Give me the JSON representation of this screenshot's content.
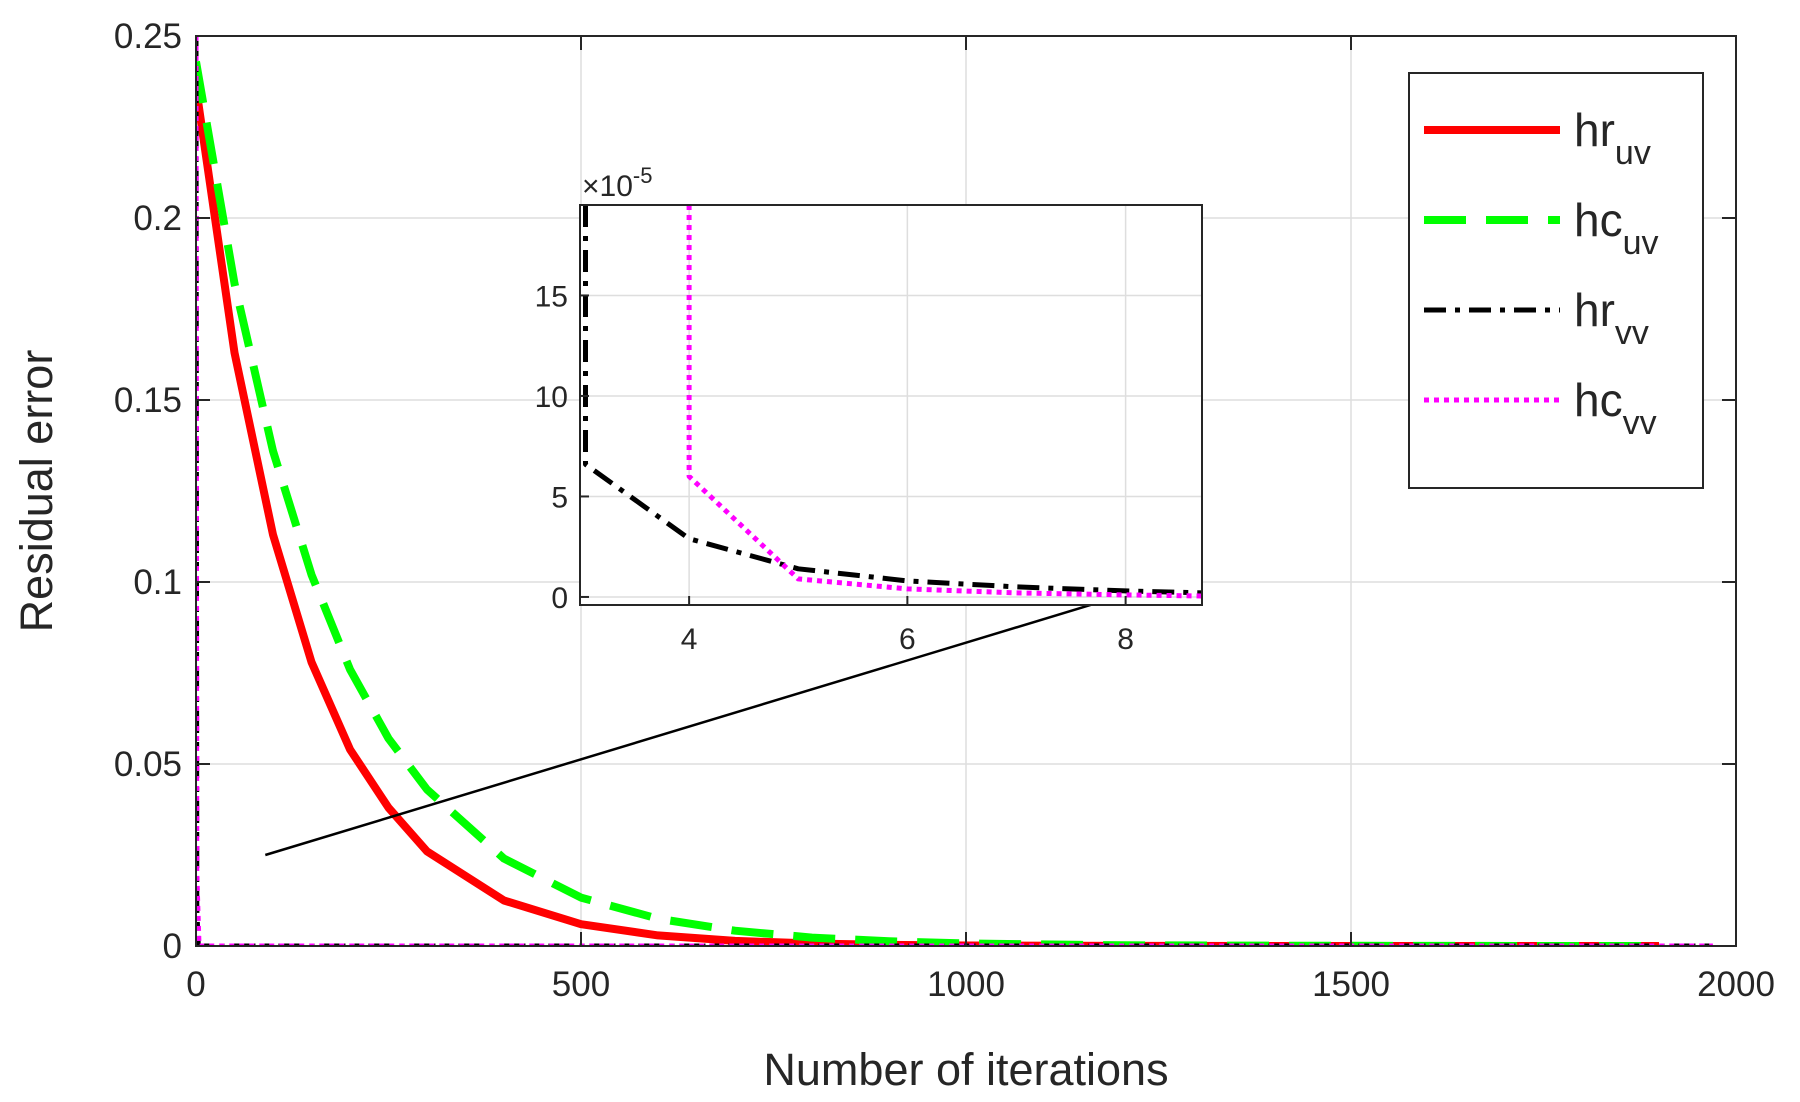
{
  "chart_data": {
    "type": "line",
    "title": "",
    "xlabel": "Number of iterations",
    "ylabel": "Residual error",
    "xlim": [
      0,
      2000
    ],
    "ylim": [
      0,
      0.25
    ],
    "x_ticks": [
      "0",
      "500",
      "1000",
      "1500",
      "2000"
    ],
    "y_ticks": [
      "0",
      "0.05",
      "0.1",
      "0.15",
      "0.2",
      "0.25"
    ],
    "grid": true,
    "legend_position": "top-right",
    "series": [
      {
        "name": "hr",
        "subscript": "uv",
        "color": "#ff0000",
        "style": "solid",
        "x": [
          0,
          50,
          100,
          150,
          200,
          250,
          300,
          400,
          500,
          600,
          700,
          800,
          900,
          1000,
          1200,
          1400,
          1600,
          1800,
          1900
        ],
        "y": [
          0.236,
          0.163,
          0.113,
          0.078,
          0.054,
          0.038,
          0.026,
          0.0125,
          0.006,
          0.0029,
          0.0014,
          0.0007,
          0.0003,
          0.00015,
          4e-05,
          1e-05,
          3e-06,
          1e-06,
          0
        ]
      },
      {
        "name": "hc",
        "subscript": "uv",
        "color": "#00ff00",
        "style": "dashed",
        "x": [
          0,
          50,
          100,
          150,
          200,
          250,
          300,
          400,
          500,
          600,
          700,
          800,
          900,
          1000,
          1200,
          1400,
          1600,
          1800,
          1900
        ],
        "y": [
          0.243,
          0.182,
          0.136,
          0.102,
          0.076,
          0.057,
          0.043,
          0.024,
          0.0133,
          0.0075,
          0.0042,
          0.0023,
          0.0013,
          0.0007,
          0.0002,
          7e-05,
          2e-05,
          6e-06,
          0
        ]
      },
      {
        "name": "hr",
        "subscript": "vv",
        "color": "#000000",
        "style": "dash-dot",
        "x": [
          0,
          1,
          3,
          4,
          5,
          6,
          7,
          8,
          9,
          1970
        ],
        "y": [
          0.25,
          0.01,
          6.5e-05,
          2.8e-05,
          1.4e-05,
          8.5e-06,
          5e-06,
          3e-06,
          2e-06,
          0
        ]
      },
      {
        "name": "hc",
        "subscript": "vv",
        "color": "#ff00ff",
        "style": "dotted",
        "x": [
          0,
          1,
          3.9,
          4,
          5,
          6,
          7,
          8,
          9,
          1970
        ],
        "y": [
          0.25,
          0.02,
          0.00025,
          6e-05,
          1e-05,
          4e-06,
          2e-06,
          1e-06,
          8e-07,
          0
        ]
      }
    ],
    "inset": {
      "multiplier_prefix": "×10",
      "multiplier_exp": "-5",
      "xlim": [
        3,
        8.7
      ],
      "ylim": [
        -0.4,
        19.5
      ],
      "x_ticks": [
        "4",
        "6",
        "8"
      ],
      "y_ticks": [
        "0",
        "5",
        "10",
        "15"
      ],
      "grid": true,
      "series": [
        {
          "color": "#000000",
          "style": "dash-dot",
          "x": [
            3.05,
            3.05,
            4,
            5,
            6,
            7,
            8,
            8.7
          ],
          "y": [
            19.5,
            6.6,
            2.9,
            1.4,
            0.8,
            0.5,
            0.3,
            0.2
          ]
        },
        {
          "color": "#ff00ff",
          "style": "dotted",
          "x": [
            4,
            4,
            5,
            6,
            7,
            8,
            8.7
          ],
          "y": [
            19.5,
            6.0,
            0.9,
            0.4,
            0.2,
            0.1,
            0.05
          ]
        }
      ]
    },
    "annotation_arrow": {
      "from": [
        90,
        0.025
      ],
      "to": [
        1260,
        0.1
      ]
    }
  }
}
